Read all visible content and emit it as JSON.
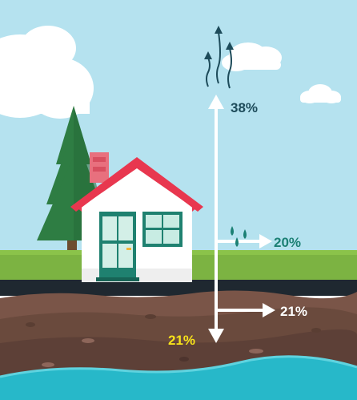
{
  "labels": {
    "evaporation": "38%",
    "runoff": "20%",
    "shallow_infiltration": "21%",
    "deep_infiltration": "21%"
  },
  "colors": {
    "sky": "#b5e2ef",
    "grass": "#7cb342",
    "soil": "#7a5548",
    "groundwater": "#27b8c9",
    "roof": "#e8374f",
    "door": "#1f8170",
    "label_dark": "#1d4b5a",
    "label_teal": "#1b8074",
    "label_yellow": "#f7e21a"
  },
  "icons": [
    "cloud-icon",
    "tree-icon",
    "house-icon",
    "water-drops-icon",
    "vapor-arrows-icon"
  ]
}
